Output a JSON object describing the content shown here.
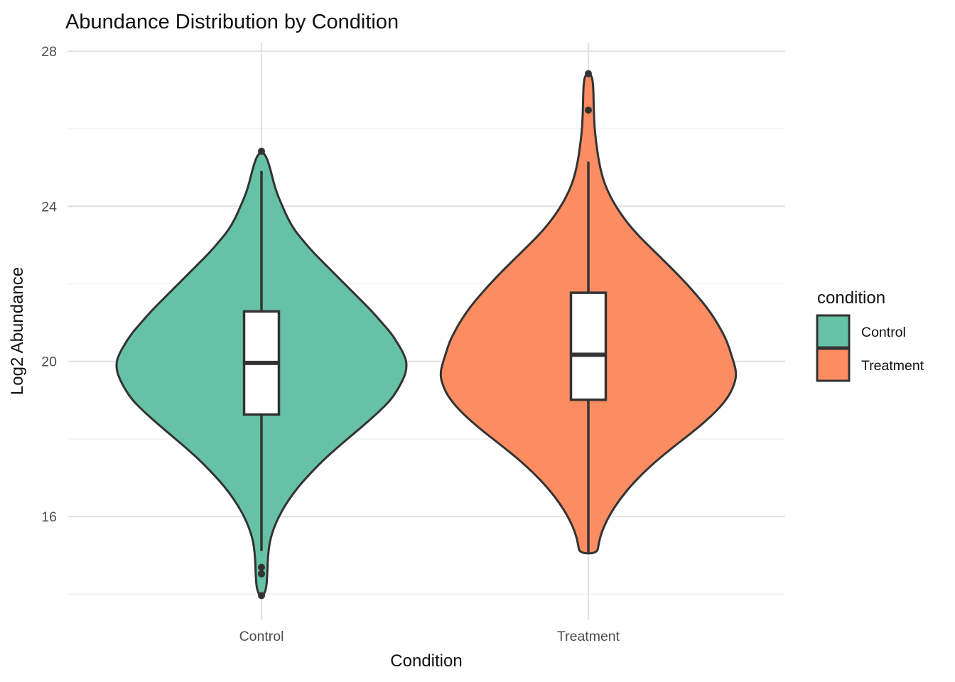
{
  "chart_data": {
    "type": "violin",
    "title": "Abundance Distribution by Condition",
    "xlabel": "Condition",
    "ylabel": "Log2 Abundance",
    "categories": [
      "Control",
      "Treatment"
    ],
    "y_ticks": [
      16,
      20,
      24,
      28
    ],
    "y_minor_ticks": [
      14,
      18,
      22,
      26
    ],
    "ylim": [
      13.3,
      28.2
    ],
    "grid": "on",
    "legend": {
      "title": "condition",
      "position": "right",
      "entries": [
        {
          "label": "Control",
          "color": "#66C2A5"
        },
        {
          "label": "Treatment",
          "color": "#FC8D62"
        }
      ]
    },
    "series": [
      {
        "name": "Control",
        "color": "#66C2A5",
        "box": {
          "q1": 18.63,
          "median": 19.96,
          "q3": 21.29,
          "whisker_low": 15.11,
          "whisker_high": 24.91
        },
        "outliers": [
          25.42,
          14.69,
          14.52,
          13.96
        ],
        "density": [
          [
            25.42,
            0.0
          ],
          [
            25.3,
            0.03
          ],
          [
            25.1,
            0.05
          ],
          [
            24.9,
            0.065
          ],
          [
            24.6,
            0.085
          ],
          [
            24.3,
            0.11
          ],
          [
            24.0,
            0.145
          ],
          [
            23.7,
            0.18
          ],
          [
            23.4,
            0.225
          ],
          [
            23.1,
            0.29
          ],
          [
            22.8,
            0.36
          ],
          [
            22.5,
            0.44
          ],
          [
            22.2,
            0.52
          ],
          [
            21.9,
            0.6
          ],
          [
            21.6,
            0.68
          ],
          [
            21.3,
            0.76
          ],
          [
            21.0,
            0.83
          ],
          [
            20.7,
            0.9
          ],
          [
            20.4,
            0.95
          ],
          [
            20.2,
            0.98
          ],
          [
            20.0,
            1.0
          ],
          [
            19.8,
            1.0
          ],
          [
            19.6,
            0.985
          ],
          [
            19.3,
            0.945
          ],
          [
            19.0,
            0.89
          ],
          [
            18.7,
            0.81
          ],
          [
            18.4,
            0.72
          ],
          [
            18.1,
            0.625
          ],
          [
            17.8,
            0.53
          ],
          [
            17.5,
            0.44
          ],
          [
            17.2,
            0.36
          ],
          [
            16.9,
            0.285
          ],
          [
            16.6,
            0.22
          ],
          [
            16.3,
            0.165
          ],
          [
            16.0,
            0.12
          ],
          [
            15.7,
            0.085
          ],
          [
            15.4,
            0.06
          ],
          [
            15.1,
            0.048
          ],
          [
            14.8,
            0.042
          ],
          [
            14.5,
            0.04
          ],
          [
            14.2,
            0.035
          ],
          [
            14.0,
            0.02
          ],
          [
            13.95,
            0.0
          ]
        ]
      },
      {
        "name": "Treatment",
        "color": "#FC8D62",
        "box": {
          "q1": 19.01,
          "median": 20.17,
          "q3": 21.77,
          "whisker_low": 15.05,
          "whisker_high": 25.15
        },
        "outliers": [
          27.42,
          26.48
        ],
        "density": [
          [
            27.45,
            0.0
          ],
          [
            27.35,
            0.025
          ],
          [
            27.1,
            0.033
          ],
          [
            26.8,
            0.035
          ],
          [
            26.5,
            0.037
          ],
          [
            26.2,
            0.04
          ],
          [
            25.9,
            0.045
          ],
          [
            25.6,
            0.055
          ],
          [
            25.3,
            0.065
          ],
          [
            25.0,
            0.08
          ],
          [
            24.7,
            0.1
          ],
          [
            24.4,
            0.13
          ],
          [
            24.1,
            0.17
          ],
          [
            23.8,
            0.22
          ],
          [
            23.5,
            0.28
          ],
          [
            23.2,
            0.35
          ],
          [
            22.9,
            0.43
          ],
          [
            22.6,
            0.51
          ],
          [
            22.3,
            0.59
          ],
          [
            22.0,
            0.665
          ],
          [
            21.7,
            0.735
          ],
          [
            21.4,
            0.8
          ],
          [
            21.1,
            0.855
          ],
          [
            20.8,
            0.9
          ],
          [
            20.5,
            0.94
          ],
          [
            20.2,
            0.965
          ],
          [
            19.9,
            0.99
          ],
          [
            19.7,
            1.0
          ],
          [
            19.5,
            0.995
          ],
          [
            19.2,
            0.965
          ],
          [
            18.9,
            0.91
          ],
          [
            18.6,
            0.835
          ],
          [
            18.3,
            0.745
          ],
          [
            18.0,
            0.645
          ],
          [
            17.7,
            0.545
          ],
          [
            17.4,
            0.45
          ],
          [
            17.1,
            0.365
          ],
          [
            16.8,
            0.29
          ],
          [
            16.5,
            0.225
          ],
          [
            16.2,
            0.17
          ],
          [
            15.9,
            0.125
          ],
          [
            15.6,
            0.09
          ],
          [
            15.3,
            0.07
          ],
          [
            15.05,
            0.06
          ]
        ]
      }
    ]
  }
}
